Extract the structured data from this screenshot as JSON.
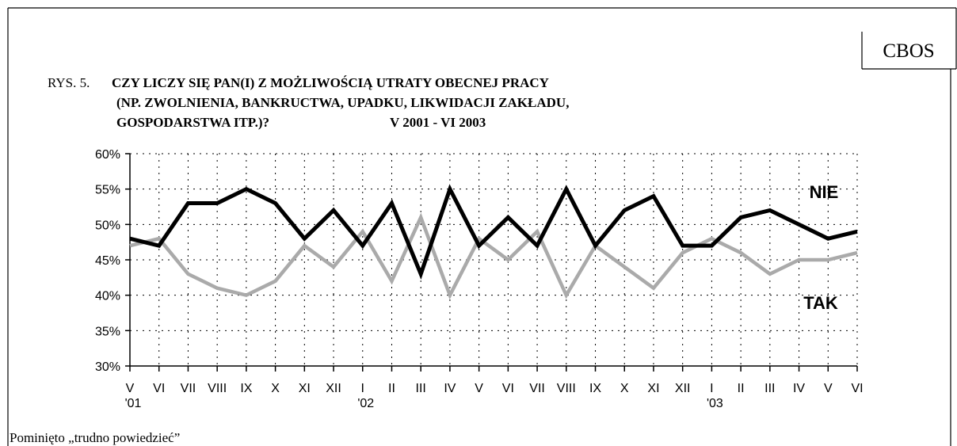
{
  "chart_data": {
    "type": "line",
    "source": "CBOS",
    "title_prefix": "RYS. 5.",
    "title_lines": [
      "CZY LICZY SIĘ PAN(I) Z MOŻLIWOŚCIĄ UTRATY OBECNEJ PRACY",
      "(NP. ZWOLNIENIA, BANKRUCTWA, UPADKU, LIKWIDACJI ZAKŁADU,",
      "GOSPODARSTWA ITP.)?"
    ],
    "subtitle": "V 2001 - VI 2003",
    "categories": [
      "V",
      "VI",
      "VII",
      "VIII",
      "IX",
      "X",
      "XI",
      "XII",
      "I",
      "II",
      "III",
      "IV",
      "V",
      "VI",
      "VII",
      "VIII",
      "IX",
      "X",
      "XI",
      "XII",
      "I",
      "II",
      "III",
      "IV",
      "V",
      "VI"
    ],
    "category_years": [
      "'01",
      null,
      null,
      null,
      null,
      null,
      null,
      null,
      "'02",
      null,
      null,
      null,
      null,
      null,
      null,
      null,
      null,
      null,
      null,
      null,
      "'03",
      null,
      null,
      null,
      null,
      null
    ],
    "series": [
      {
        "name": "NIE",
        "color": "#000000",
        "values": [
          48,
          47,
          53,
          53,
          55,
          53,
          48,
          52,
          47,
          53,
          43,
          55,
          47,
          51,
          47,
          55,
          47,
          52,
          54,
          47,
          47,
          51,
          52,
          50,
          48,
          49
        ]
      },
      {
        "name": "TAK",
        "color": "#aaaaaa",
        "values": [
          47,
          48,
          43,
          41,
          40,
          42,
          47,
          44,
          49,
          42,
          51,
          40,
          48,
          45,
          49,
          40,
          47,
          44,
          41,
          46,
          48,
          46,
          43,
          45,
          45,
          46
        ]
      }
    ],
    "ylim": [
      30,
      60
    ],
    "yticks": [
      {
        "value": 30,
        "label": "30%"
      },
      {
        "value": 35,
        "label": "35%"
      },
      {
        "value": 40,
        "label": "40%"
      },
      {
        "value": 45,
        "label": "45%"
      },
      {
        "value": 50,
        "label": "50%"
      },
      {
        "value": 55,
        "label": "55%"
      },
      {
        "value": 60,
        "label": "60%"
      }
    ],
    "grid": true,
    "note": "Pominięto „trudno powiedzieć”"
  }
}
